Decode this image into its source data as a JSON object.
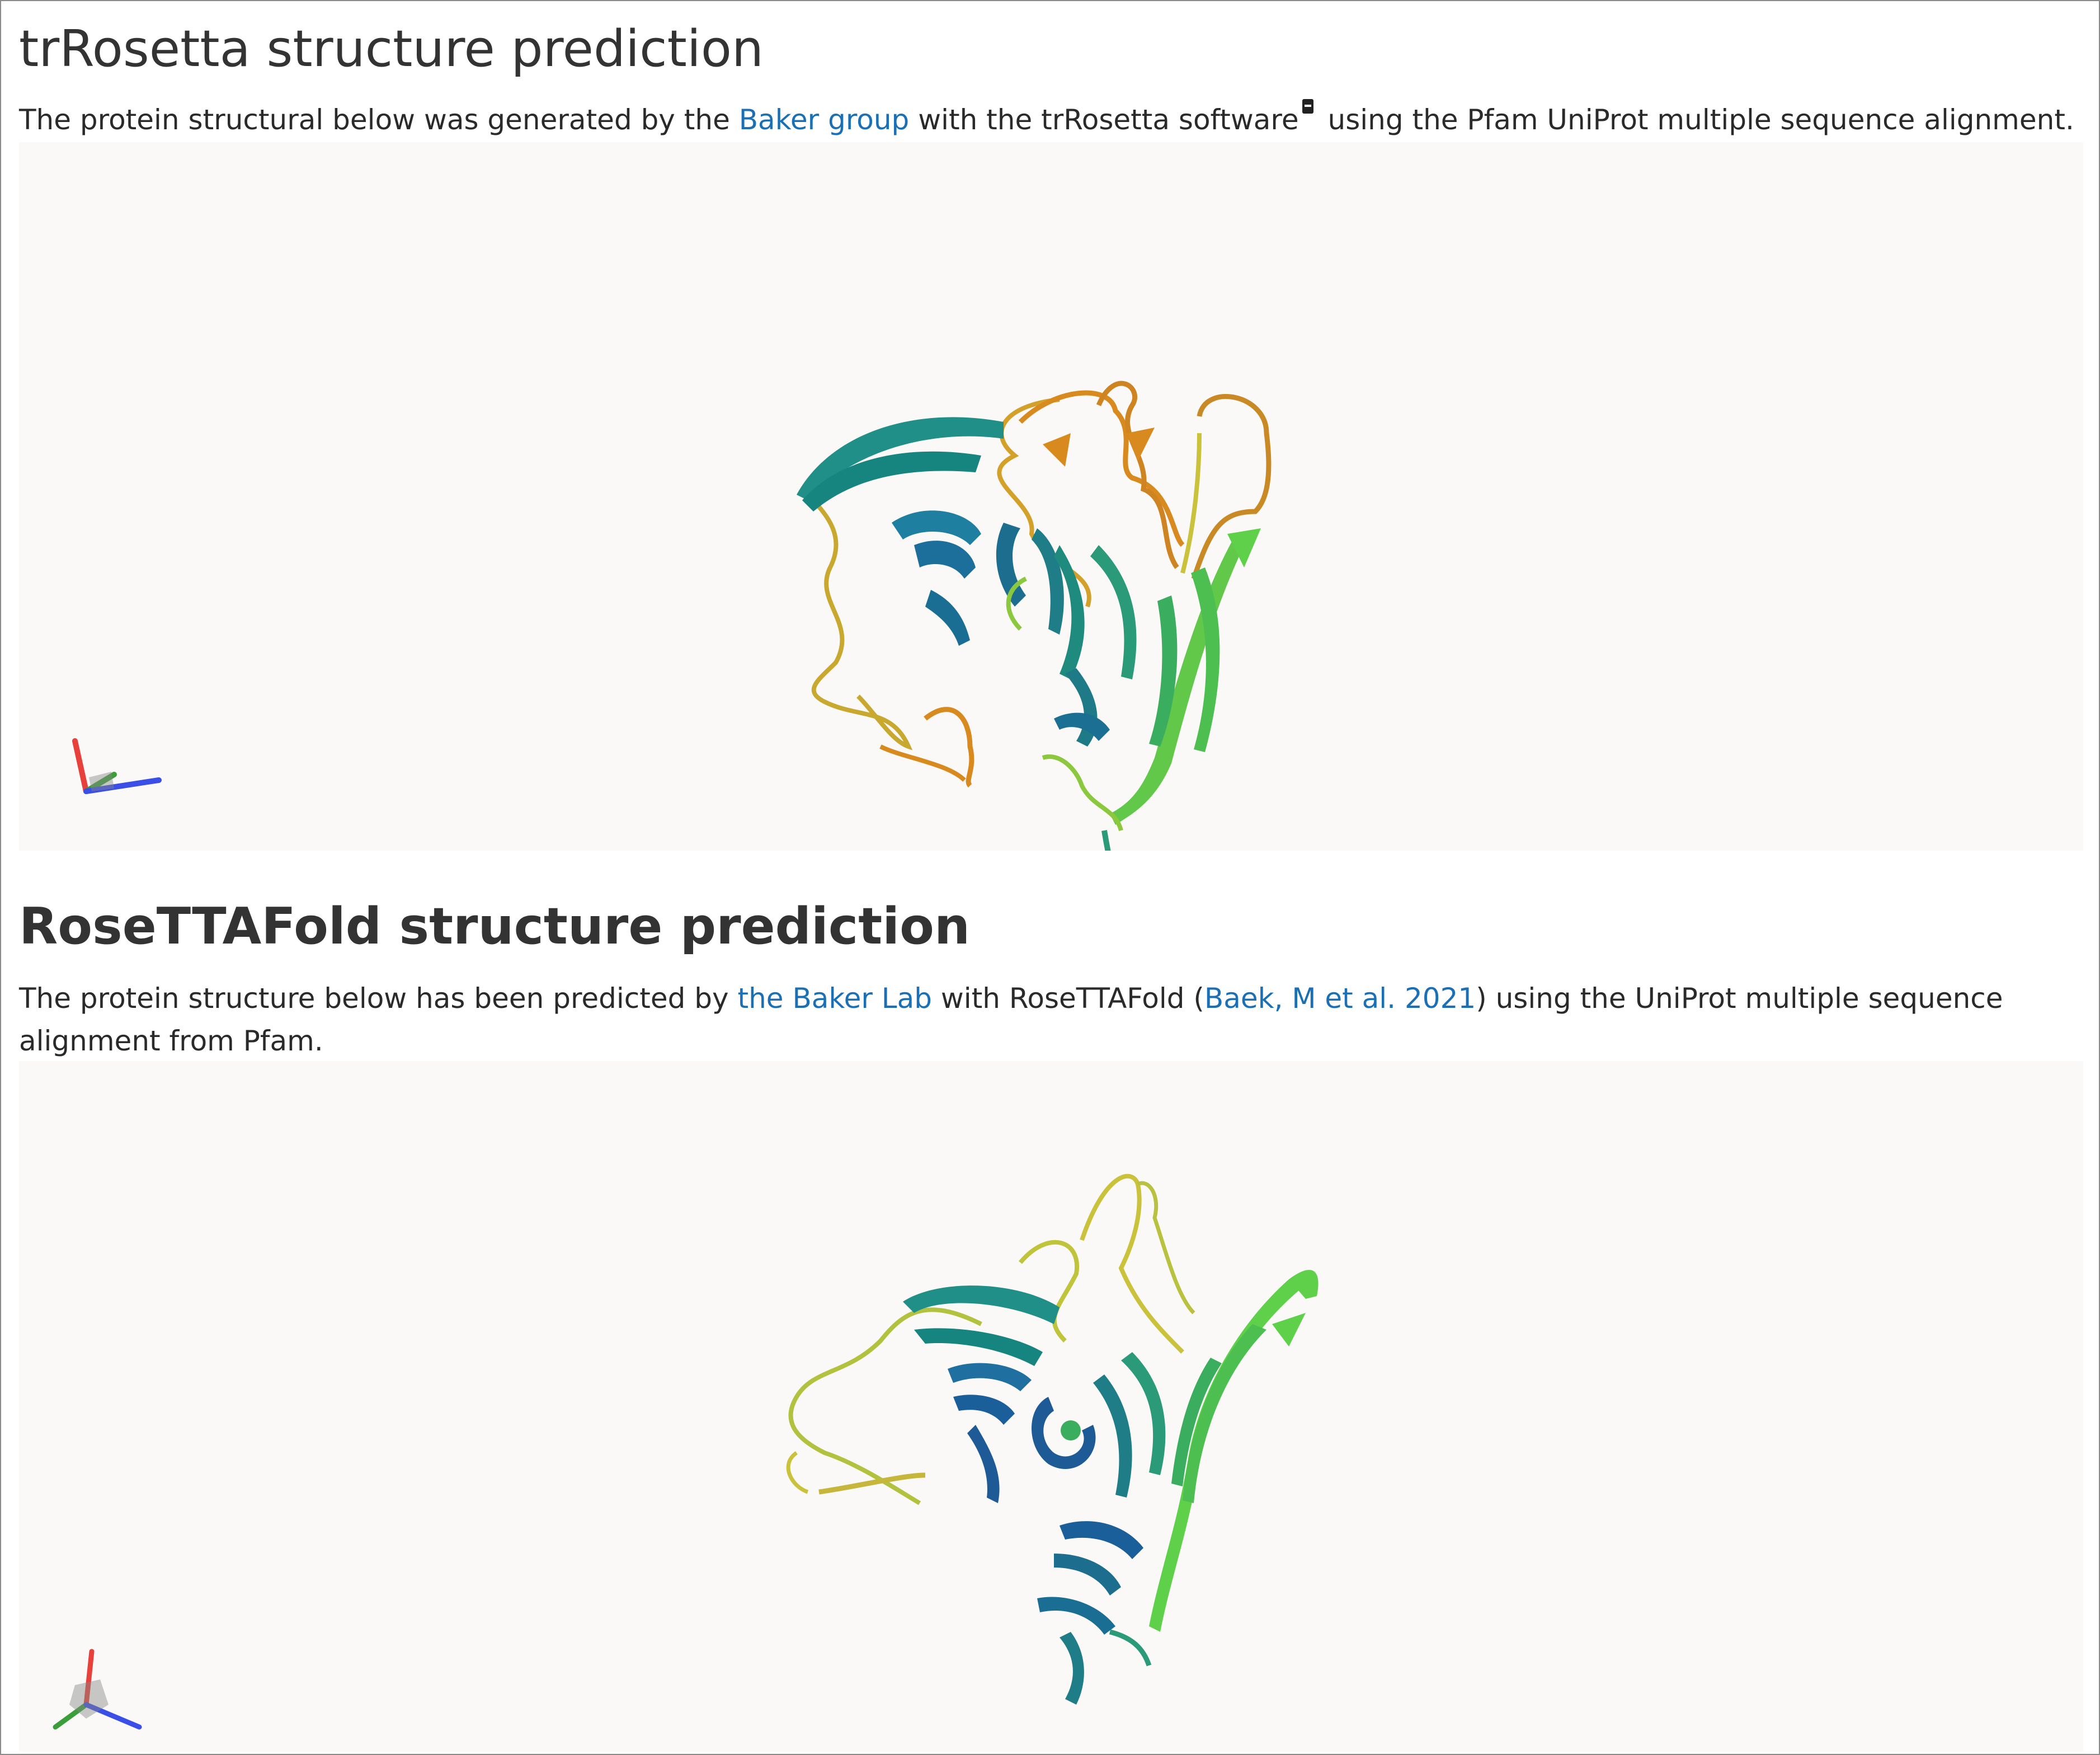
{
  "sections": [
    {
      "title": "trRosetta structure prediction",
      "text_before": "The protein structural below was generated by the ",
      "link1": "Baker group",
      "text_middle": " with the trRosetta software",
      "text_after": " using the Pfam UniProt multiple sequence alignment."
    },
    {
      "title": "RoseTTAFold structure prediction",
      "text_before": "The protein structure below has been predicted by ",
      "link1": "the Baker Lab",
      "text_middle": " with RoseTTAFold (",
      "link2": "Baek, M et al. 2021",
      "text_after": ") using the UniProt multiple sequence alignment from Pfam."
    }
  ],
  "colors": {
    "link": "#1a6fb5",
    "viewer_bg": "#faf9f8",
    "strand_teal": "#1f8f88",
    "strand_green": "#5fd04a",
    "loop_orange": "#d98a1e",
    "loop_yellow": "#c9c23a"
  },
  "icons": [
    "external-link-icon",
    "axes-orientation-icon"
  ]
}
